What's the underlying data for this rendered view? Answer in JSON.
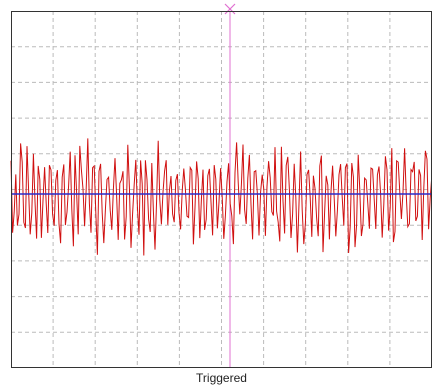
{
  "scope": {
    "status_text": "Triggered",
    "trace_color": "#d01010",
    "reference_color": "#2a2ac8",
    "center_line_color": "#e070d0",
    "grid_color": "#bbbbbb",
    "frame_color": "#333333",
    "trigger_marker_icon": "x-marker-icon",
    "noise_peak_level": 0.3,
    "noise_trough_level": -0.35,
    "seed": 7
  }
}
